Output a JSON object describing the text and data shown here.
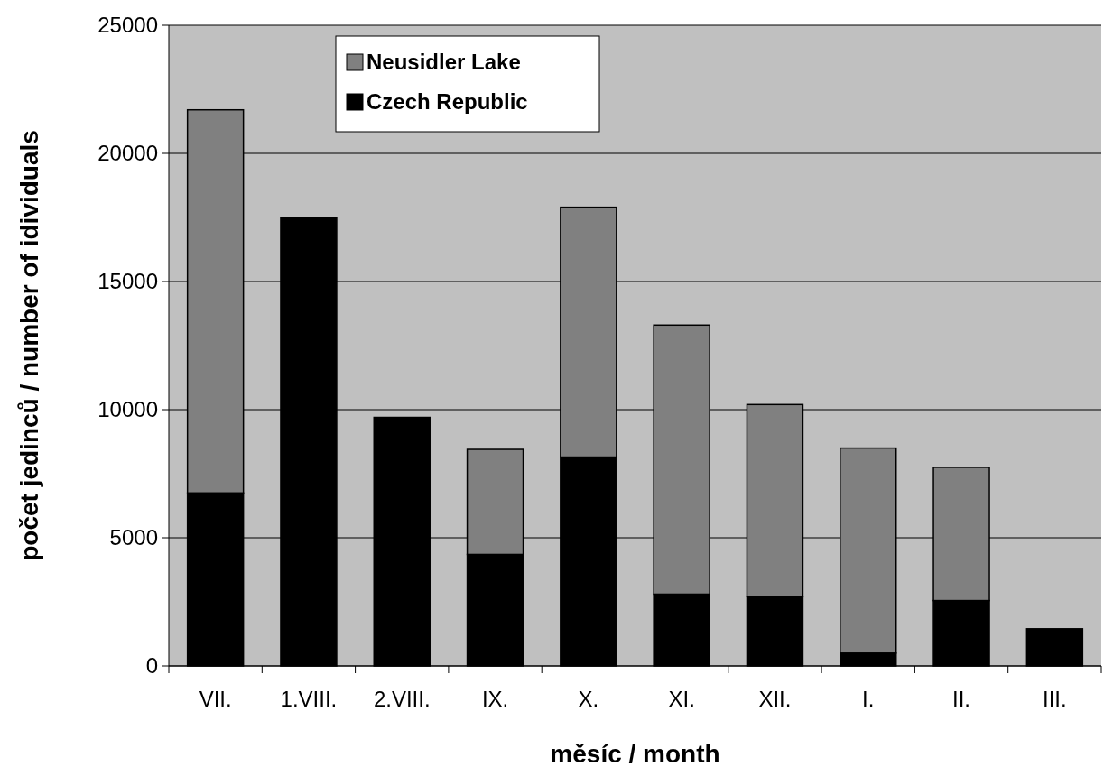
{
  "chart_data": {
    "type": "bar",
    "stacked": true,
    "xlabel": "měsíc / month",
    "ylabel": "počet jedinců / number of idividuals",
    "categories": [
      "VII.",
      "1.VIII.",
      "2.VIII.",
      "IX.",
      "X.",
      "XI.",
      "XII.",
      "I.",
      "II.",
      "III."
    ],
    "series": [
      {
        "name": "Czech Republic",
        "color": "#000000",
        "values": [
          6750,
          17500,
          9700,
          4350,
          8150,
          2800,
          2700,
          500,
          2550,
          1450
        ]
      },
      {
        "name": "Neusidler Lake",
        "color": "#808080",
        "values": [
          14950,
          0,
          0,
          4100,
          9750,
          10500,
          7500,
          8000,
          5200,
          0
        ]
      }
    ],
    "ylim": [
      0,
      25000
    ],
    "yticks": [
      0,
      5000,
      10000,
      15000,
      20000,
      25000
    ],
    "grid": "y",
    "legend": "top left"
  }
}
